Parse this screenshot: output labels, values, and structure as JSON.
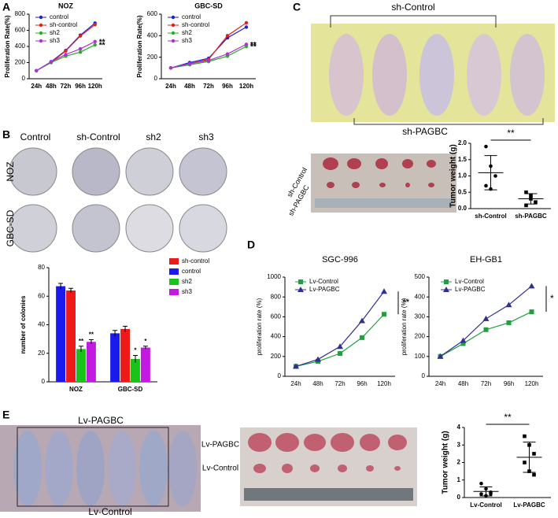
{
  "panel_labels": [
    "A",
    "B",
    "C",
    "D",
    "E"
  ],
  "photo_labels": {
    "b_columns": [
      "Control",
      "sh-Control",
      "sh2",
      "sh3"
    ],
    "b_rows": [
      "NOZ",
      "GBC-SD"
    ],
    "c_top": "sh-Control",
    "c_bottom": "sh-PAGBC",
    "c_gel": [
      "sh-Control",
      "sh-PAGBC"
    ],
    "e_top": "Lv-PAGBC",
    "e_bottom": "Lv-Control",
    "e_tumor": [
      "Lv-PAGBC",
      "Lv-Control"
    ]
  },
  "chart_data": [
    {
      "type": "line",
      "title": "NOZ",
      "ylabel": "Proliferation Rate(%)",
      "categories": [
        "24h",
        "48h",
        "72h",
        "96h",
        "120h"
      ],
      "ylim": [
        0,
        800
      ],
      "yticks": [
        0,
        200,
        400,
        600,
        800
      ],
      "series": [
        {
          "name": "control",
          "color": "#1f1fd0",
          "marker": "circle",
          "values": [
            100,
            210,
            350,
            540,
            690
          ]
        },
        {
          "name": "sh-control",
          "color": "#e02020",
          "marker": "circle",
          "values": [
            100,
            200,
            345,
            530,
            670
          ]
        },
        {
          "name": "sh2",
          "color": "#20b020",
          "marker": "circle",
          "values": [
            100,
            200,
            280,
            330,
            420
          ],
          "annotation": "**"
        },
        {
          "name": "sh3",
          "color": "#b030d0",
          "marker": "circle",
          "values": [
            100,
            210,
            300,
            370,
            460
          ],
          "annotation": "**"
        }
      ]
    },
    {
      "type": "line",
      "title": "GBC-SD",
      "ylabel": "Proliferation Rate(%)",
      "categories": [
        "24h",
        "48h",
        "72h",
        "96h",
        "120h"
      ],
      "ylim": [
        0,
        600
      ],
      "yticks": [
        0,
        200,
        400,
        600
      ],
      "series": [
        {
          "name": "control",
          "color": "#1f1fd0",
          "marker": "circle",
          "values": [
            100,
            150,
            190,
            380,
            480
          ]
        },
        {
          "name": "sh-control",
          "color": "#e02020",
          "marker": "circle",
          "values": [
            100,
            140,
            180,
            400,
            520
          ]
        },
        {
          "name": "sh2",
          "color": "#20b020",
          "marker": "circle",
          "values": [
            100,
            130,
            160,
            210,
            300
          ],
          "annotation": "**"
        },
        {
          "name": "sh3",
          "color": "#b030d0",
          "marker": "circle",
          "values": [
            100,
            140,
            170,
            230,
            320
          ],
          "annotation": "**"
        }
      ]
    },
    {
      "type": "bar",
      "ylabel": "number of colonies",
      "categories": [
        "NOZ",
        "GBC-SD"
      ],
      "ylim": [
        0,
        80
      ],
      "yticks": [
        0,
        20,
        40,
        60,
        80
      ],
      "legend_order": [
        1,
        0,
        2,
        3
      ],
      "series": [
        {
          "name": "control",
          "color": "#1a1aee",
          "values": [
            67,
            34
          ],
          "errors": [
            2,
            2
          ]
        },
        {
          "name": "sh-control",
          "color": "#ee1a1a",
          "values": [
            64,
            37
          ],
          "errors": [
            1.5,
            2
          ]
        },
        {
          "name": "sh2",
          "color": "#1ac21a",
          "values": [
            23,
            16
          ],
          "errors": [
            2,
            2.5
          ],
          "annotations": [
            "**",
            "*"
          ]
        },
        {
          "name": "sh3",
          "color": "#c21ae0",
          "values": [
            28,
            24
          ],
          "errors": [
            1.5,
            1
          ],
          "annotations": [
            "**",
            "*"
          ]
        }
      ]
    },
    {
      "type": "dotplot",
      "ylabel": "Tumor weight (g)",
      "categories": [
        "sh-Control",
        "sh-PAGBC"
      ],
      "ylim": [
        0,
        2
      ],
      "yticks": [
        {
          "value": 0,
          "label": "0.0"
        },
        {
          "value": 0.5,
          "label": "0.5"
        },
        {
          "value": 1,
          "label": "1.0"
        },
        {
          "value": 1.5,
          "label": "1.5"
        },
        {
          "value": 2,
          "label": "2.0"
        }
      ],
      "values": [
        [
          1.9,
          1.3,
          1.0,
          0.7,
          0.6
        ],
        [
          0.5,
          0.3,
          0.2,
          0.1,
          0.4
        ]
      ],
      "annotation": "**"
    },
    {
      "type": "line",
      "title": "SGC-996",
      "ylabel": "proliferation rate (%)",
      "categories": [
        "24h",
        "48h",
        "72h",
        "96h",
        "120h"
      ],
      "ylim": [
        0,
        1000
      ],
      "yticks": [
        0,
        200,
        400,
        600,
        800,
        1000
      ],
      "annotation": "**",
      "series": [
        {
          "name": "Lv-Control",
          "color": "#20a040",
          "marker": "square",
          "values": [
            100,
            150,
            230,
            390,
            625
          ]
        },
        {
          "name": "Lv-PAGBC",
          "color": "#303090",
          "marker": "triangle",
          "values": [
            100,
            170,
            300,
            560,
            855
          ]
        }
      ]
    },
    {
      "type": "line",
      "title": "EH-GB1",
      "ylabel": "proliferation rate (%)",
      "categories": [
        "24h",
        "48h",
        "72h",
        "96h",
        "120h"
      ],
      "ylim": [
        0,
        500
      ],
      "yticks": [
        0,
        100,
        200,
        300,
        400,
        500
      ],
      "annotation": "*",
      "series": [
        {
          "name": "Lv-Control",
          "color": "#20a040",
          "marker": "square",
          "values": [
            100,
            165,
            235,
            270,
            325
          ]
        },
        {
          "name": "Lv-PAGBC",
          "color": "#303090",
          "marker": "triangle",
          "values": [
            100,
            180,
            290,
            360,
            455
          ]
        }
      ]
    },
    {
      "type": "dotplot",
      "ylabel": "Tumor weight (g)",
      "categories": [
        "Lv-Control",
        "Lv-PAGBC"
      ],
      "ylim": [
        0,
        4
      ],
      "yticks": [
        0,
        1,
        2,
        3,
        4
      ],
      "values": [
        [
          0.8,
          0.5,
          0.3,
          0.2,
          0.1,
          0.2
        ],
        [
          3.5,
          3.0,
          2.5,
          2.0,
          1.5,
          1.3
        ]
      ],
      "annotation": "**"
    }
  ]
}
